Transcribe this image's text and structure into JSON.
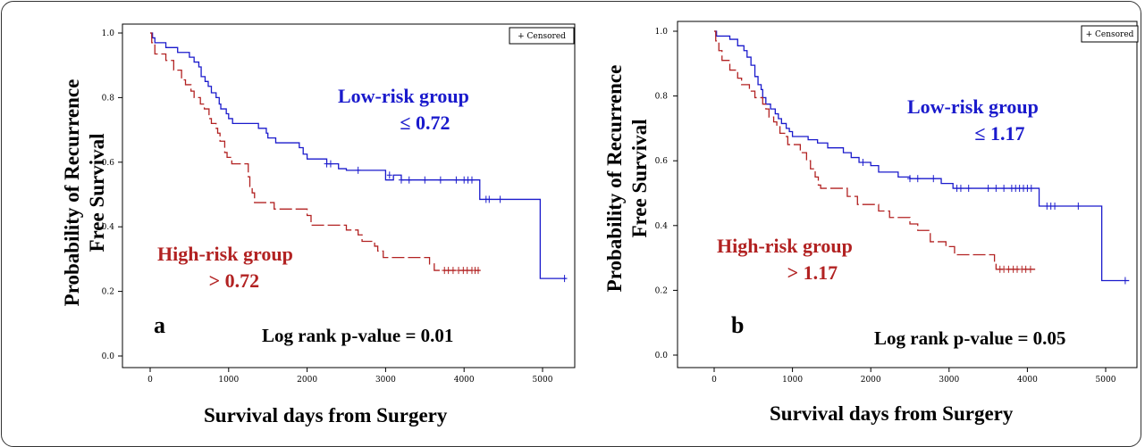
{
  "chart_data": [
    {
      "panel_letter": "a",
      "type": "line",
      "ylabel_line1": "Probability of Recurrence",
      "ylabel_line2": "Free Survival",
      "xlabel": "Survival days from Surgery",
      "xlim": [
        0,
        5300
      ],
      "ylim": [
        0,
        1.0
      ],
      "x_ticks": [
        0,
        1000,
        2000,
        3000,
        4000,
        5000
      ],
      "y_ticks": [
        "0.0",
        "0.2",
        "0.4",
        "0.6",
        "0.8",
        "1.0"
      ],
      "legend": "+ Censored",
      "pvalue_text": "Log rank p-value = 0.01",
      "series": [
        {
          "group_line1": "Low-risk group",
          "group_line2": "≤ 0.72",
          "color": "#1a1acc",
          "dash": false,
          "steps": [
            [
              0,
              1.0
            ],
            [
              30,
              0.985
            ],
            [
              60,
              0.97
            ],
            [
              200,
              0.955
            ],
            [
              350,
              0.94
            ],
            [
              500,
              0.925
            ],
            [
              560,
              0.91
            ],
            [
              620,
              0.895
            ],
            [
              650,
              0.865
            ],
            [
              700,
              0.85
            ],
            [
              740,
              0.835
            ],
            [
              780,
              0.815
            ],
            [
              840,
              0.8
            ],
            [
              880,
              0.78
            ],
            [
              900,
              0.765
            ],
            [
              970,
              0.75
            ],
            [
              1000,
              0.735
            ],
            [
              1050,
              0.72
            ],
            [
              1380,
              0.705
            ],
            [
              1480,
              0.69
            ],
            [
              1500,
              0.675
            ],
            [
              1600,
              0.66
            ],
            [
              1900,
              0.645
            ],
            [
              1950,
              0.625
            ],
            [
              2000,
              0.61
            ],
            [
              2250,
              0.595
            ],
            [
              2400,
              0.58
            ],
            [
              2500,
              0.575
            ],
            [
              3100,
              0.56
            ],
            [
              3200,
              0.545
            ],
            [
              3000,
              0.545
            ],
            [
              4200,
              0.485
            ],
            [
              4970,
              0.24
            ],
            [
              5300,
              0.24
            ]
          ],
          "censored": [
            [
              2250,
              0.595
            ],
            [
              2300,
              0.595
            ],
            [
              2650,
              0.575
            ],
            [
              3050,
              0.56
            ],
            [
              3200,
              0.545
            ],
            [
              3300,
              0.545
            ],
            [
              3500,
              0.545
            ],
            [
              3700,
              0.545
            ],
            [
              3900,
              0.545
            ],
            [
              4000,
              0.545
            ],
            [
              4050,
              0.545
            ],
            [
              4100,
              0.545
            ],
            [
              4280,
              0.485
            ],
            [
              4320,
              0.485
            ],
            [
              4460,
              0.485
            ],
            [
              5280,
              0.24
            ]
          ]
        },
        {
          "group_line1": "High-risk group",
          "group_line2": "> 0.72",
          "color": "#b22222",
          "dash": true,
          "steps": [
            [
              0,
              1.0
            ],
            [
              20,
              0.97
            ],
            [
              60,
              0.935
            ],
            [
              200,
              0.915
            ],
            [
              300,
              0.885
            ],
            [
              400,
              0.855
            ],
            [
              450,
              0.84
            ],
            [
              520,
              0.82
            ],
            [
              560,
              0.8
            ],
            [
              640,
              0.78
            ],
            [
              690,
              0.765
            ],
            [
              750,
              0.735
            ],
            [
              780,
              0.72
            ],
            [
              840,
              0.705
            ],
            [
              860,
              0.69
            ],
            [
              890,
              0.665
            ],
            [
              950,
              0.63
            ],
            [
              980,
              0.615
            ],
            [
              1040,
              0.595
            ],
            [
              1250,
              0.555
            ],
            [
              1270,
              0.525
            ],
            [
              1300,
              0.505
            ],
            [
              1330,
              0.475
            ],
            [
              1580,
              0.455
            ],
            [
              2000,
              0.435
            ],
            [
              2050,
              0.405
            ],
            [
              2500,
              0.39
            ],
            [
              2650,
              0.375
            ],
            [
              2700,
              0.355
            ],
            [
              2860,
              0.34
            ],
            [
              2900,
              0.325
            ],
            [
              2970,
              0.305
            ],
            [
              3560,
              0.285
            ],
            [
              3620,
              0.265
            ],
            [
              4200,
              0.265
            ]
          ],
          "censored": [
            [
              3750,
              0.265
            ],
            [
              3800,
              0.265
            ],
            [
              3860,
              0.265
            ],
            [
              3930,
              0.265
            ],
            [
              3990,
              0.265
            ],
            [
              4040,
              0.265
            ],
            [
              4100,
              0.265
            ],
            [
              4140,
              0.265
            ],
            [
              4180,
              0.265
            ]
          ]
        }
      ]
    },
    {
      "panel_letter": "b",
      "type": "line",
      "ylabel_line1": "Probability of Recurrence",
      "ylabel_line2": "Free Survival",
      "xlabel": "Survival days from Surgery",
      "xlim": [
        0,
        5300
      ],
      "ylim": [
        0,
        1.0
      ],
      "x_ticks": [
        0,
        1000,
        2000,
        3000,
        4000,
        5000
      ],
      "y_ticks": [
        "0.0",
        "0.2",
        "0.4",
        "0.6",
        "0.8",
        "1.0"
      ],
      "legend": "+ Censored",
      "pvalue_text": "Log rank p-value = 0.05",
      "series": [
        {
          "group_line1": "Low-risk group",
          "group_line2": "≤ 1.17",
          "color": "#1a1acc",
          "dash": false,
          "steps": [
            [
              0,
              1.0
            ],
            [
              30,
              0.985
            ],
            [
              200,
              0.975
            ],
            [
              300,
              0.955
            ],
            [
              380,
              0.94
            ],
            [
              420,
              0.92
            ],
            [
              470,
              0.895
            ],
            [
              520,
              0.86
            ],
            [
              560,
              0.835
            ],
            [
              600,
              0.82
            ],
            [
              620,
              0.795
            ],
            [
              660,
              0.775
            ],
            [
              720,
              0.76
            ],
            [
              780,
              0.745
            ],
            [
              820,
              0.73
            ],
            [
              860,
              0.715
            ],
            [
              920,
              0.7
            ],
            [
              960,
              0.69
            ],
            [
              1000,
              0.675
            ],
            [
              1200,
              0.665
            ],
            [
              1320,
              0.655
            ],
            [
              1450,
              0.64
            ],
            [
              1650,
              0.625
            ],
            [
              1750,
              0.61
            ],
            [
              1850,
              0.595
            ],
            [
              2000,
              0.585
            ],
            [
              2100,
              0.565
            ],
            [
              2350,
              0.55
            ],
            [
              2500,
              0.545
            ],
            [
              2900,
              0.53
            ],
            [
              3050,
              0.515
            ],
            [
              4150,
              0.46
            ],
            [
              4950,
              0.23
            ],
            [
              5300,
              0.23
            ]
          ],
          "censored": [
            [
              1900,
              0.595
            ],
            [
              2500,
              0.545
            ],
            [
              2600,
              0.545
            ],
            [
              2800,
              0.545
            ],
            [
              3100,
              0.515
            ],
            [
              3150,
              0.515
            ],
            [
              3250,
              0.515
            ],
            [
              3500,
              0.515
            ],
            [
              3600,
              0.515
            ],
            [
              3700,
              0.515
            ],
            [
              3800,
              0.515
            ],
            [
              3850,
              0.515
            ],
            [
              3900,
              0.515
            ],
            [
              3950,
              0.515
            ],
            [
              4000,
              0.515
            ],
            [
              4050,
              0.515
            ],
            [
              4250,
              0.46
            ],
            [
              4300,
              0.46
            ],
            [
              4350,
              0.46
            ],
            [
              4650,
              0.46
            ],
            [
              5250,
              0.23
            ]
          ]
        },
        {
          "group_line1": "High-risk group",
          "group_line2": "> 1.17",
          "color": "#b22222",
          "dash": true,
          "steps": [
            [
              0,
              1.0
            ],
            [
              20,
              0.97
            ],
            [
              60,
              0.94
            ],
            [
              100,
              0.91
            ],
            [
              200,
              0.88
            ],
            [
              300,
              0.855
            ],
            [
              350,
              0.835
            ],
            [
              450,
              0.815
            ],
            [
              520,
              0.795
            ],
            [
              620,
              0.775
            ],
            [
              660,
              0.76
            ],
            [
              700,
              0.735
            ],
            [
              760,
              0.72
            ],
            [
              800,
              0.705
            ],
            [
              840,
              0.685
            ],
            [
              900,
              0.675
            ],
            [
              940,
              0.65
            ],
            [
              1100,
              0.625
            ],
            [
              1180,
              0.6
            ],
            [
              1230,
              0.575
            ],
            [
              1290,
              0.55
            ],
            [
              1330,
              0.525
            ],
            [
              1360,
              0.515
            ],
            [
              1700,
              0.49
            ],
            [
              1830,
              0.465
            ],
            [
              2100,
              0.445
            ],
            [
              2240,
              0.425
            ],
            [
              2500,
              0.405
            ],
            [
              2600,
              0.385
            ],
            [
              2760,
              0.35
            ],
            [
              2960,
              0.335
            ],
            [
              3070,
              0.31
            ],
            [
              3580,
              0.285
            ],
            [
              3600,
              0.265
            ],
            [
              4100,
              0.265
            ]
          ],
          "censored": [
            [
              3650,
              0.265
            ],
            [
              3700,
              0.265
            ],
            [
              3760,
              0.265
            ],
            [
              3820,
              0.265
            ],
            [
              3870,
              0.265
            ],
            [
              3930,
              0.265
            ],
            [
              3980,
              0.265
            ],
            [
              4040,
              0.265
            ]
          ]
        }
      ]
    }
  ]
}
